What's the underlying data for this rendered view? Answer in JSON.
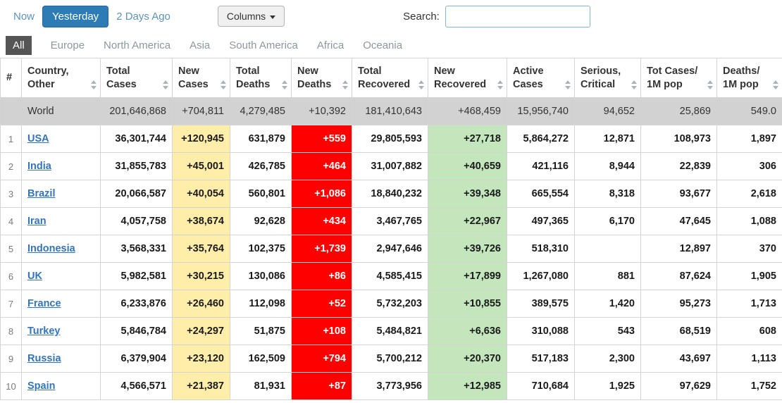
{
  "toolbar": {
    "now": "Now",
    "yesterday": "Yesterday",
    "two_days_ago": "2 Days Ago",
    "columns": "Columns",
    "search_label": "Search:",
    "search_value": ""
  },
  "active_tab": "All",
  "tabs": [
    "All",
    "Europe",
    "North America",
    "Asia",
    "South America",
    "Africa",
    "Oceania"
  ],
  "colors": {
    "accent_blue": "#2d7cb5",
    "new_cases_bg": "#FFEEAA",
    "new_deaths_bg": "#FF0000",
    "new_recovered_bg": "#C3E6BD",
    "world_row_bg": "#D2D2D2",
    "active_tab_bg": "#555555"
  },
  "table": {
    "headers": [
      [
        "#"
      ],
      [
        "Country,",
        "Other"
      ],
      [
        "Total",
        "Cases"
      ],
      [
        "New",
        "Cases"
      ],
      [
        "Total",
        "Deaths"
      ],
      [
        "New",
        "Deaths"
      ],
      [
        "Total",
        "Recovered"
      ],
      [
        "New",
        "Recovered"
      ],
      [
        "Active",
        "Cases"
      ],
      [
        "Serious,",
        "Critical"
      ],
      [
        "Tot Cases/",
        "1M pop"
      ],
      [
        "Deaths/",
        "1M pop"
      ]
    ],
    "world_row": {
      "rank": "",
      "country": "World",
      "cells": [
        "201,646,868",
        "+704,811",
        "4,279,485",
        "+10,392",
        "181,410,643",
        "+468,459",
        "15,956,740",
        "94,652",
        "25,869",
        "549.0"
      ]
    },
    "rows": [
      {
        "rank": "1",
        "country": "USA",
        "cells": [
          "36,301,744",
          "+120,945",
          "631,879",
          "+559",
          "29,805,593",
          "+27,718",
          "5,864,272",
          "12,871",
          "108,973",
          "1,897"
        ]
      },
      {
        "rank": "2",
        "country": "India",
        "cells": [
          "31,855,783",
          "+45,001",
          "426,785",
          "+464",
          "31,007,882",
          "+40,659",
          "421,116",
          "8,944",
          "22,839",
          "306"
        ]
      },
      {
        "rank": "3",
        "country": "Brazil",
        "cells": [
          "20,066,587",
          "+40,054",
          "560,801",
          "+1,086",
          "18,840,232",
          "+39,348",
          "665,554",
          "8,318",
          "93,677",
          "2,618"
        ]
      },
      {
        "rank": "4",
        "country": "Iran",
        "cells": [
          "4,057,758",
          "+38,674",
          "92,628",
          "+434",
          "3,467,765",
          "+22,967",
          "497,365",
          "6,170",
          "47,645",
          "1,088"
        ]
      },
      {
        "rank": "5",
        "country": "Indonesia",
        "cells": [
          "3,568,331",
          "+35,764",
          "102,375",
          "+1,739",
          "2,947,646",
          "+39,726",
          "518,310",
          "",
          "12,897",
          "370"
        ]
      },
      {
        "rank": "6",
        "country": "UK",
        "cells": [
          "5,982,581",
          "+30,215",
          "130,086",
          "+86",
          "4,585,415",
          "+17,899",
          "1,267,080",
          "881",
          "87,624",
          "1,905"
        ]
      },
      {
        "rank": "7",
        "country": "France",
        "cells": [
          "6,233,876",
          "+26,460",
          "112,098",
          "+52",
          "5,732,203",
          "+10,855",
          "389,575",
          "1,420",
          "95,273",
          "1,713"
        ]
      },
      {
        "rank": "8",
        "country": "Turkey",
        "cells": [
          "5,846,784",
          "+24,297",
          "51,875",
          "+108",
          "5,484,821",
          "+6,636",
          "310,088",
          "543",
          "68,519",
          "608"
        ]
      },
      {
        "rank": "9",
        "country": "Russia",
        "cells": [
          "6,379,904",
          "+23,120",
          "162,509",
          "+794",
          "5,700,212",
          "+20,370",
          "517,183",
          "2,300",
          "43,697",
          "1,113"
        ]
      },
      {
        "rank": "10",
        "country": "Spain",
        "cells": [
          "4,566,571",
          "+21,387",
          "81,931",
          "+87",
          "3,773,956",
          "+12,985",
          "710,684",
          "1,925",
          "97,629",
          "1,752"
        ]
      }
    ]
  }
}
